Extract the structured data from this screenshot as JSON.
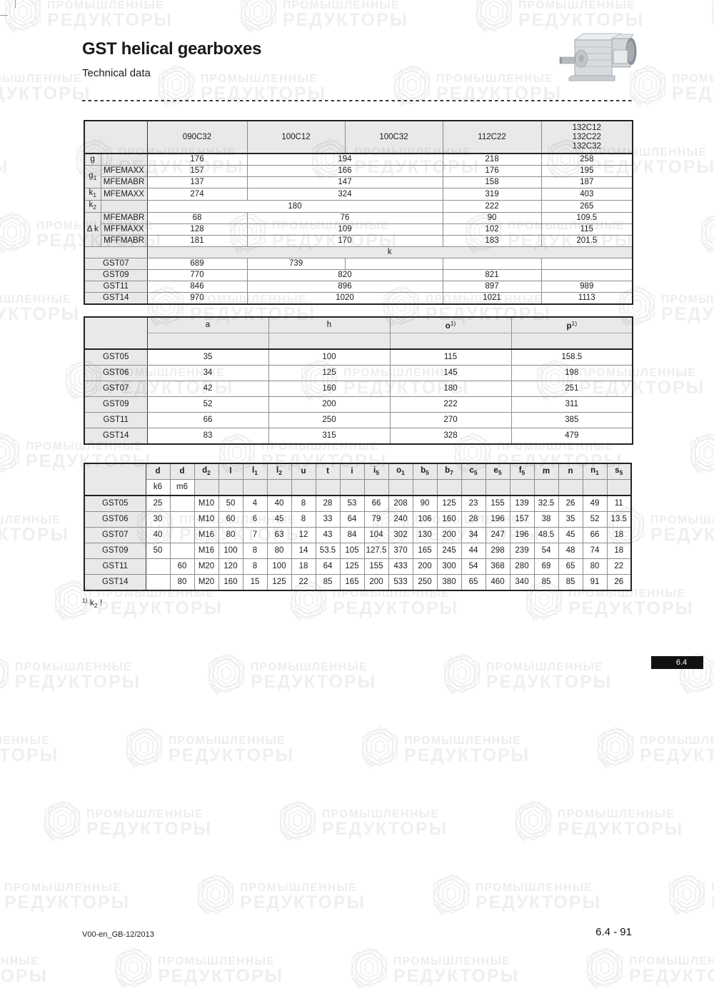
{
  "page": {
    "title": "GST helical gearboxes",
    "subtitle": "Technical data",
    "section_tab": "6.4",
    "footer_left": "V00-en_GB-12/2013",
    "footer_right": "6.4 - 91"
  },
  "footnote": {
    "sup": "1)",
    "base": "k",
    "sub": "2",
    "excl": "!"
  },
  "watermark": {
    "line1": "ПРОМЫШЛЕННЫЕ",
    "line2": "РЕДУКТОРЫ",
    "text_color": "#ededed",
    "logo_color": "#ececec"
  },
  "table1": {
    "header": {
      "c1": "090C32",
      "c2": "100C12",
      "c3": "100C32",
      "c4": "112C22",
      "c5_l1": "132C12",
      "c5_l2": "132C22",
      "c5_l3": "132C32"
    },
    "kband": "k",
    "rows": {
      "g": {
        "base": "g",
        "v1": "176",
        "v2": "194",
        "v3": "218",
        "v4": "258"
      },
      "g1": {
        "base": "g",
        "sub": "1"
      },
      "g1_mfemaxx": {
        "param": "MFEMAXX",
        "v1": "157",
        "v2": "166",
        "v3": "176",
        "v4": "195"
      },
      "g1_mfemabr": {
        "param": "MFEMABR",
        "v1": "137",
        "v2": "147",
        "v3": "158",
        "v4": "187"
      },
      "k1": {
        "base": "k",
        "sub": "1",
        "param": "MFEMAXX",
        "v1": "274",
        "v2": "324",
        "v3": "319",
        "v4": "403"
      },
      "k2": {
        "base": "k",
        "sub": "2",
        "v1": "180",
        "v2": "222",
        "v3": "265"
      },
      "dk": {
        "base": "Δ k"
      },
      "dk_mfemabr": {
        "param": "MFEMABR",
        "v1": "68",
        "v2": "76",
        "v3": "90",
        "v4": "109.5"
      },
      "dk_mffmaxx": {
        "param": "MFFMAXX",
        "v1": "128",
        "v2": "109",
        "v3": "102",
        "v4": "115"
      },
      "dk_mffmabr": {
        "param": "MFFMABR",
        "v1": "181",
        "v2": "170",
        "v3": "183",
        "v4": "201.5"
      },
      "gst07": {
        "label": "GST07",
        "v1": "689",
        "v2": "739",
        "v3": "",
        "v4": "",
        "v5": ""
      },
      "gst09": {
        "label": "GST09",
        "v1": "770",
        "v2": "820",
        "v3": "821",
        "v4": ""
      },
      "gst11": {
        "label": "GST11",
        "v1": "846",
        "v2": "896",
        "v3": "897",
        "v4": "989"
      },
      "gst14": {
        "label": "GST14",
        "v1": "970",
        "v2": "1020",
        "v3": "1021",
        "v4": "1113"
      }
    }
  },
  "table2": {
    "header": {
      "a": "a",
      "h": "h",
      "o": "o",
      "o_sup": "1)",
      "p": "p",
      "p_sup": "1)"
    },
    "rows": [
      {
        "label": "GST05",
        "a": "35",
        "h": "100",
        "o": "115",
        "p": "158.5"
      },
      {
        "label": "GST06",
        "a": "34",
        "h": "125",
        "o": "145",
        "p": "198"
      },
      {
        "label": "GST07",
        "a": "42",
        "h": "160",
        "o": "180",
        "p": "251"
      },
      {
        "label": "GST09",
        "a": "52",
        "h": "200",
        "o": "222",
        "p": "311"
      },
      {
        "label": "GST11",
        "a": "66",
        "h": "250",
        "o": "270",
        "p": "385"
      },
      {
        "label": "GST14",
        "a": "83",
        "h": "315",
        "o": "328",
        "p": "479"
      }
    ]
  },
  "table3": {
    "headers": [
      {
        "base": "d",
        "sub": ""
      },
      {
        "base": "d",
        "sub": ""
      },
      {
        "base": "d",
        "sub": "2"
      },
      {
        "base": "l",
        "sub": ""
      },
      {
        "base": "l",
        "sub": "1"
      },
      {
        "base": "l",
        "sub": "2"
      },
      {
        "base": "u",
        "sub": ""
      },
      {
        "base": "t",
        "sub": ""
      },
      {
        "base": "i",
        "sub": ""
      },
      {
        "base": "i",
        "sub": "5"
      },
      {
        "base": "o",
        "sub": "1"
      },
      {
        "base": "b",
        "sub": "5"
      },
      {
        "base": "b",
        "sub": "7"
      },
      {
        "base": "c",
        "sub": "5"
      },
      {
        "base": "e",
        "sub": "5"
      },
      {
        "base": "f",
        "sub": "5"
      },
      {
        "base": "m",
        "sub": ""
      },
      {
        "base": "n",
        "sub": ""
      },
      {
        "base": "n",
        "sub": "1"
      },
      {
        "base": "s",
        "sub": "5"
      }
    ],
    "subheaders": [
      "k6",
      "m6"
    ],
    "rows": [
      {
        "label": "GST05",
        "cells": [
          "25",
          "",
          "M10",
          "50",
          "4",
          "40",
          "8",
          "28",
          "53",
          "66",
          "208",
          "90",
          "125",
          "23",
          "155",
          "139",
          "32.5",
          "26",
          "49",
          "11"
        ]
      },
      {
        "label": "GST06",
        "cells": [
          "30",
          "",
          "M10",
          "60",
          "6",
          "45",
          "8",
          "33",
          "64",
          "79",
          "240",
          "106",
          "160",
          "28",
          "196",
          "157",
          "38",
          "35",
          "52",
          "13.5"
        ]
      },
      {
        "label": "GST07",
        "cells": [
          "40",
          "",
          "M16",
          "80",
          "7",
          "63",
          "12",
          "43",
          "84",
          "104",
          "302",
          "130",
          "200",
          "34",
          "247",
          "196",
          "48.5",
          "45",
          "66",
          "18"
        ]
      },
      {
        "label": "GST09",
        "cells": [
          "50",
          "",
          "M16",
          "100",
          "8",
          "80",
          "14",
          "53.5",
          "105",
          "127.5",
          "370",
          "165",
          "245",
          "44",
          "298",
          "239",
          "54",
          "48",
          "74",
          "18"
        ]
      },
      {
        "label": "GST11",
        "cells": [
          "",
          "60",
          "M20",
          "120",
          "8",
          "100",
          "18",
          "64",
          "125",
          "155",
          "433",
          "200",
          "300",
          "54",
          "368",
          "280",
          "69",
          "65",
          "80",
          "22"
        ]
      },
      {
        "label": "GST14",
        "cells": [
          "",
          "80",
          "M20",
          "160",
          "15",
          "125",
          "22",
          "85",
          "165",
          "200",
          "533",
          "250",
          "380",
          "65",
          "460",
          "340",
          "85",
          "85",
          "91",
          "26"
        ]
      }
    ]
  }
}
